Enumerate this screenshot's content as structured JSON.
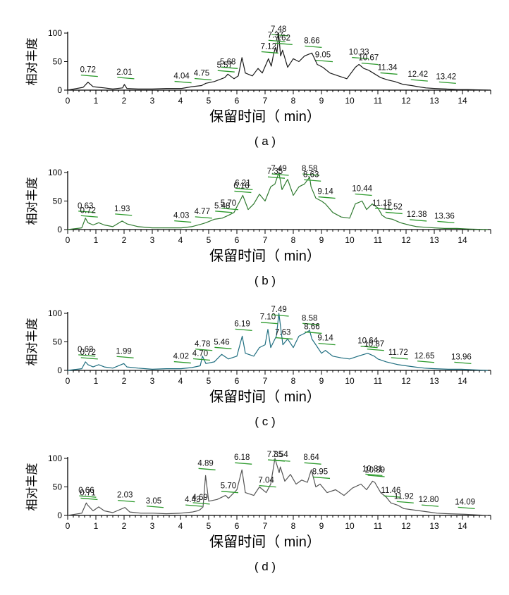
{
  "figure": {
    "ylabel": "相对丰度",
    "xlabel": "保留时间（ min）",
    "ylim": [
      0,
      100
    ],
    "xlim": [
      0,
      15
    ],
    "xticks": [
      "0",
      "1",
      "2",
      "3",
      "4",
      "5",
      "6",
      "7",
      "8",
      "9",
      "10",
      "11",
      "12",
      "13",
      "14"
    ],
    "yticks": [
      "0",
      "50",
      "100"
    ]
  },
  "chart_data": [
    {
      "type": "line",
      "panel_label": "( a )",
      "color": "#1a1a1a",
      "series": [
        {
          "x": [
            0.0,
            0.55,
            0.72,
            0.9,
            1.1,
            1.3,
            1.6,
            1.95,
            2.01,
            2.1,
            2.5,
            3.0,
            3.5,
            4.04,
            4.4,
            4.75,
            4.9,
            5.2,
            5.57,
            5.68,
            5.9,
            6.05,
            6.18,
            6.3,
            6.55,
            6.75,
            6.9,
            7.12,
            7.22,
            7.3,
            7.37,
            7.42,
            7.48,
            7.55,
            7.62,
            7.8,
            8.0,
            8.2,
            8.4,
            8.66,
            8.85,
            9.05,
            9.3,
            9.6,
            9.9,
            10.2,
            10.33,
            10.5,
            10.67,
            10.9,
            11.1,
            11.34,
            11.6,
            11.9,
            12.2,
            12.42,
            12.7,
            13.0,
            13.42,
            13.8,
            14.2,
            14.9
          ],
          "y": [
            0,
            5,
            14,
            6,
            5,
            4,
            2,
            4,
            10,
            3,
            2,
            2,
            3,
            3,
            6,
            8,
            12,
            15,
            22,
            28,
            20,
            25,
            57,
            30,
            25,
            38,
            30,
            55,
            42,
            63,
            75,
            65,
            100,
            60,
            70,
            40,
            55,
            50,
            60,
            65,
            45,
            40,
            30,
            25,
            20,
            40,
            45,
            38,
            35,
            28,
            22,
            18,
            15,
            10,
            8,
            6,
            4,
            3,
            2,
            1,
            1,
            0
          ]
        }
      ],
      "annotations": [
        {
          "x": 0.72,
          "label": "0.72"
        },
        {
          "x": 2.01,
          "label": "2.01"
        },
        {
          "x": 4.04,
          "label": "4.04"
        },
        {
          "x": 4.75,
          "label": "4.75"
        },
        {
          "x": 5.57,
          "label": "5.57"
        },
        {
          "x": 5.68,
          "label": "5.68"
        },
        {
          "x": 7.12,
          "label": "7.12"
        },
        {
          "x": 7.37,
          "label": "7.37"
        },
        {
          "x": 7.48,
          "label": "7.48"
        },
        {
          "x": 7.62,
          "label": "7.62"
        },
        {
          "x": 8.66,
          "label": "8.66"
        },
        {
          "x": 9.05,
          "label": "9.05"
        },
        {
          "x": 10.33,
          "label": "10.33"
        },
        {
          "x": 10.67,
          "label": "10.67"
        },
        {
          "x": 11.34,
          "label": "11.34"
        },
        {
          "x": 12.42,
          "label": "12.42"
        },
        {
          "x": 13.42,
          "label": "13.42"
        }
      ]
    },
    {
      "type": "line",
      "panel_label": "( b )",
      "color": "#2f7a2f",
      "series": [
        {
          "x": [
            0.0,
            0.5,
            0.63,
            0.72,
            0.9,
            1.1,
            1.3,
            1.6,
            1.93,
            2.1,
            2.5,
            3.0,
            3.5,
            4.03,
            4.4,
            4.77,
            4.9,
            5.2,
            5.48,
            5.7,
            5.9,
            6.0,
            6.16,
            6.21,
            6.4,
            6.6,
            6.8,
            7.0,
            7.2,
            7.35,
            7.49,
            7.6,
            7.8,
            8.0,
            8.2,
            8.4,
            8.58,
            8.63,
            8.8,
            9.0,
            9.14,
            9.4,
            9.7,
            10.0,
            10.2,
            10.44,
            10.6,
            10.8,
            11.0,
            11.15,
            11.3,
            11.52,
            11.8,
            12.1,
            12.38,
            12.7,
            13.0,
            13.36,
            13.8,
            14.2,
            14.9
          ],
          "y": [
            0,
            3,
            20,
            12,
            8,
            12,
            8,
            5,
            15,
            10,
            5,
            3,
            3,
            3,
            5,
            10,
            12,
            18,
            20,
            25,
            30,
            40,
            55,
            60,
            35,
            45,
            62,
            50,
            75,
            80,
            100,
            70,
            88,
            60,
            75,
            80,
            92,
            75,
            55,
            50,
            45,
            30,
            22,
            20,
            45,
            50,
            35,
            45,
            38,
            25,
            20,
            18,
            12,
            8,
            5,
            4,
            3,
            2,
            2,
            1,
            0
          ]
        }
      ],
      "annotations": [
        {
          "x": 0.63,
          "label": "0.63"
        },
        {
          "x": 0.72,
          "label": "0.72"
        },
        {
          "x": 1.93,
          "label": "1.93"
        },
        {
          "x": 4.03,
          "label": "4.03"
        },
        {
          "x": 4.77,
          "label": "4.77"
        },
        {
          "x": 5.48,
          "label": "5.48"
        },
        {
          "x": 5.7,
          "label": "5.70"
        },
        {
          "x": 6.16,
          "label": "6.16"
        },
        {
          "x": 6.21,
          "label": "6.21"
        },
        {
          "x": 7.35,
          "label": "7.35"
        },
        {
          "x": 7.49,
          "label": "7.49"
        },
        {
          "x": 8.58,
          "label": "8.58"
        },
        {
          "x": 8.63,
          "label": "8.63"
        },
        {
          "x": 9.14,
          "label": "9.14"
        },
        {
          "x": 10.44,
          "label": "10.44"
        },
        {
          "x": 11.15,
          "label": "11.15"
        },
        {
          "x": 11.52,
          "label": "11.52"
        },
        {
          "x": 12.38,
          "label": "12.38"
        },
        {
          "x": 13.36,
          "label": "13.36"
        }
      ]
    },
    {
      "type": "line",
      "panel_label": "( c )",
      "color": "#1f6e80",
      "series": [
        {
          "x": [
            0.0,
            0.5,
            0.63,
            0.72,
            0.9,
            1.1,
            1.3,
            1.6,
            1.99,
            2.1,
            2.5,
            3.0,
            3.5,
            4.02,
            4.4,
            4.7,
            4.78,
            4.9,
            5.2,
            5.46,
            5.7,
            6.0,
            6.19,
            6.3,
            6.6,
            6.8,
            7.0,
            7.1,
            7.2,
            7.4,
            7.49,
            7.63,
            7.8,
            8.0,
            8.2,
            8.4,
            8.58,
            8.66,
            8.8,
            9.0,
            9.14,
            9.4,
            9.7,
            10.0,
            10.3,
            10.64,
            10.87,
            11.0,
            11.3,
            11.72,
            12.0,
            12.3,
            12.65,
            13.0,
            13.5,
            13.96,
            14.4,
            14.9
          ],
          "y": [
            0,
            3,
            15,
            10,
            6,
            10,
            6,
            4,
            12,
            6,
            4,
            2,
            3,
            3,
            5,
            8,
            25,
            12,
            15,
            28,
            20,
            25,
            60,
            30,
            25,
            40,
            45,
            72,
            40,
            60,
            100,
            45,
            55,
            40,
            60,
            65,
            70,
            55,
            45,
            30,
            35,
            25,
            22,
            20,
            25,
            30,
            25,
            20,
            15,
            10,
            8,
            6,
            4,
            3,
            2,
            2,
            1,
            0
          ]
        }
      ],
      "annotations": [
        {
          "x": 0.63,
          "label": "0.63"
        },
        {
          "x": 0.72,
          "label": "0.72"
        },
        {
          "x": 1.99,
          "label": "1.99"
        },
        {
          "x": 4.02,
          "label": "4.02"
        },
        {
          "x": 4.7,
          "label": "4.70"
        },
        {
          "x": 4.78,
          "label": "4.78"
        },
        {
          "x": 5.46,
          "label": "5.46"
        },
        {
          "x": 6.19,
          "label": "6.19"
        },
        {
          "x": 7.1,
          "label": "7.10"
        },
        {
          "x": 7.49,
          "label": "7.49"
        },
        {
          "x": 7.63,
          "label": "7.63"
        },
        {
          "x": 8.58,
          "label": "8.58"
        },
        {
          "x": 8.66,
          "label": "8.66"
        },
        {
          "x": 9.14,
          "label": "9.14"
        },
        {
          "x": 10.64,
          "label": "10.64"
        },
        {
          "x": 10.87,
          "label": "10.87"
        },
        {
          "x": 11.72,
          "label": "11.72"
        },
        {
          "x": 12.65,
          "label": "12.65"
        },
        {
          "x": 13.96,
          "label": "13.96"
        }
      ]
    },
    {
      "type": "line",
      "panel_label": "( d )",
      "color": "#555555",
      "series": [
        {
          "x": [
            0.0,
            0.5,
            0.66,
            0.71,
            0.9,
            1.1,
            1.3,
            1.6,
            2.03,
            2.2,
            2.6,
            3.05,
            3.5,
            4.0,
            4.43,
            4.6,
            4.69,
            4.8,
            4.89,
            5.0,
            5.3,
            5.6,
            5.7,
            6.0,
            6.18,
            6.3,
            6.6,
            6.8,
            7.04,
            7.2,
            7.35,
            7.5,
            7.54,
            7.7,
            7.9,
            8.1,
            8.3,
            8.5,
            8.64,
            8.8,
            8.95,
            9.2,
            9.5,
            9.8,
            10.1,
            10.4,
            10.6,
            10.81,
            10.89,
            11.1,
            11.3,
            11.46,
            11.7,
            11.92,
            12.2,
            12.5,
            12.8,
            13.1,
            13.5,
            14.09,
            14.5,
            14.9
          ],
          "y": [
            0,
            4,
            22,
            18,
            8,
            15,
            8,
            5,
            14,
            6,
            4,
            4,
            3,
            4,
            6,
            8,
            10,
            15,
            70,
            25,
            28,
            35,
            30,
            45,
            80,
            40,
            35,
            50,
            40,
            55,
            100,
            75,
            85,
            60,
            72,
            55,
            62,
            58,
            80,
            50,
            55,
            40,
            45,
            35,
            48,
            55,
            45,
            60,
            58,
            40,
            32,
            22,
            18,
            12,
            10,
            8,
            6,
            4,
            3,
            2,
            1,
            0
          ]
        }
      ],
      "annotations": [
        {
          "x": 0.66,
          "label": "0.66"
        },
        {
          "x": 0.71,
          "label": "0.71"
        },
        {
          "x": 2.03,
          "label": "2.03"
        },
        {
          "x": 3.05,
          "label": "3.05"
        },
        {
          "x": 4.43,
          "label": "4.43"
        },
        {
          "x": 4.69,
          "label": "4.69"
        },
        {
          "x": 4.89,
          "label": "4.89"
        },
        {
          "x": 5.7,
          "label": "5.70"
        },
        {
          "x": 6.18,
          "label": "6.18"
        },
        {
          "x": 7.04,
          "label": "7.04"
        },
        {
          "x": 7.35,
          "label": "7.35"
        },
        {
          "x": 7.54,
          "label": "7.54"
        },
        {
          "x": 8.64,
          "label": "8.64"
        },
        {
          "x": 8.95,
          "label": "8.95"
        },
        {
          "x": 10.81,
          "label": "10.81"
        },
        {
          "x": 10.89,
          "label": "10.89"
        },
        {
          "x": 11.46,
          "label": "11.46"
        },
        {
          "x": 11.92,
          "label": "11.92"
        },
        {
          "x": 12.8,
          "label": "12.80"
        },
        {
          "x": 14.09,
          "label": "14.09"
        }
      ]
    }
  ]
}
